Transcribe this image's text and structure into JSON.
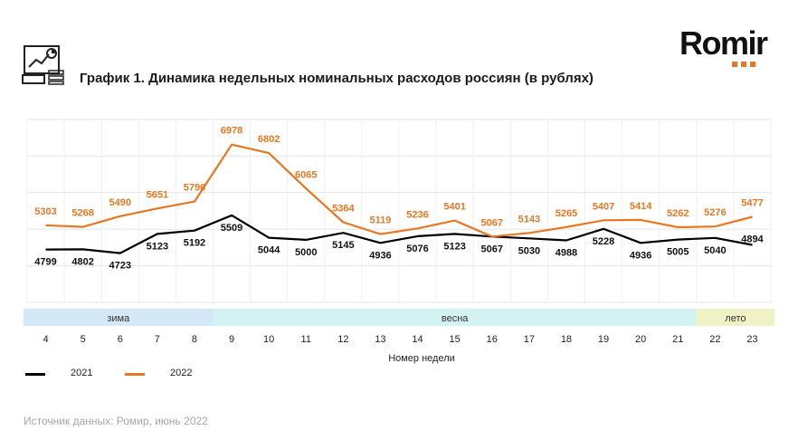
{
  "header": {
    "title": "График 1. Динамика недельных номинальных расходов россиян (в рублях)",
    "logo_text": "Romir"
  },
  "legend": [
    {
      "label": "2021",
      "color": "#000000"
    },
    {
      "label": "2022",
      "color": "#e87722"
    }
  ],
  "footer": {
    "source": "Источник данных: Ромир, июнь 2022"
  },
  "chart_data": {
    "type": "line",
    "x": [
      4,
      5,
      6,
      7,
      8,
      9,
      10,
      11,
      12,
      13,
      14,
      15,
      16,
      17,
      18,
      19,
      20,
      21,
      22,
      23
    ],
    "xlabel": "Номер недели",
    "ylim": [
      3700,
      7500
    ],
    "grid": true,
    "legend_position": "bottom-left",
    "series": [
      {
        "name": "2021",
        "color": "#000000",
        "values": [
          4799,
          4802,
          4723,
          5123,
          5192,
          5509,
          5044,
          5000,
          5145,
          4936,
          5076,
          5123,
          5067,
          5030,
          4988,
          5228,
          4936,
          5005,
          5040,
          4894
        ]
      },
      {
        "name": "2022",
        "color": "#e87722",
        "values": [
          5303,
          5268,
          5490,
          5651,
          5796,
          6978,
          6802,
          6065,
          5364,
          5119,
          5236,
          5401,
          5067,
          5143,
          5265,
          5407,
          5414,
          5262,
          5276,
          5477
        ]
      }
    ],
    "seasons": [
      {
        "label": "зима",
        "from_week": 4,
        "to_week": 8,
        "color": "#d4e8f8"
      },
      {
        "label": "весна",
        "from_week": 9,
        "to_week": 21,
        "color": "#d3f2f2"
      },
      {
        "label": "лето",
        "from_week": 22,
        "to_week": 23,
        "color": "#eef2c4"
      }
    ]
  }
}
